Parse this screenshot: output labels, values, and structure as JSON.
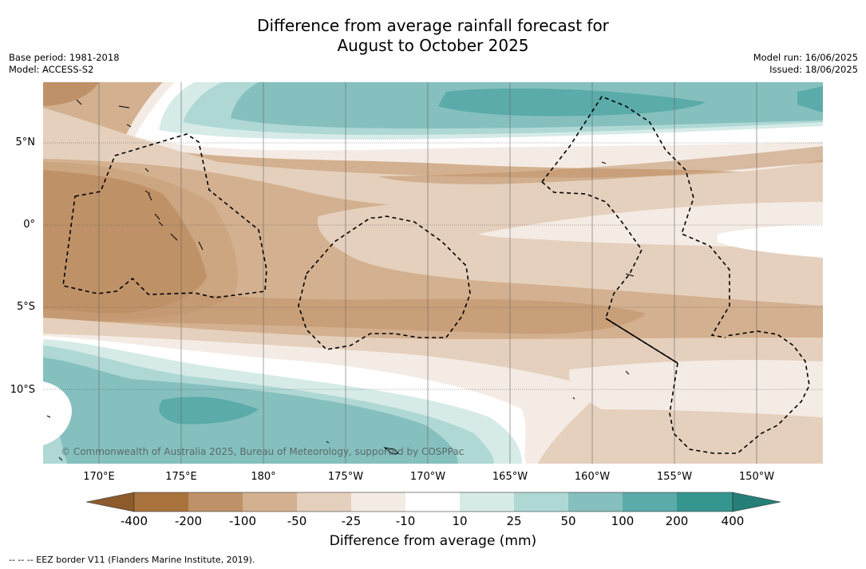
{
  "title_line1": "Difference from average rainfall forecast for",
  "title_line2": "August to October 2025",
  "base_period": "Base period: 1981-2018",
  "model": "Model: ACCESS-S2",
  "model_run": "Model run: 16/06/2025",
  "issued": "Issued: 18/06/2025",
  "copyright": "© Commonwealth of Australia 2025, Bureau of Meteorology, supported by COSPPac",
  "lat_labels": [
    "5°N",
    "0°",
    "5°S",
    "10°S"
  ],
  "lon_labels": [
    "170°E",
    "175°E",
    "180°",
    "175°W",
    "170°W",
    "165°W",
    "160°W",
    "155°W",
    "150°W"
  ],
  "colorbar": {
    "ticks": [
      "-400",
      "-200",
      "-100",
      "-50",
      "-25",
      "-10",
      "10",
      "25",
      "50",
      "100",
      "200",
      "400"
    ],
    "colors": [
      "#8c5a2b",
      "#a8733d",
      "#bf9168",
      "#d3b08f",
      "#e5d0bd",
      "#f4ebe4",
      "#ffffff",
      "#d6ebe8",
      "#afd8d5",
      "#85c0be",
      "#5aabaa",
      "#35968f",
      "#257f78"
    ],
    "title": "Difference from average (mm)"
  },
  "footnote": "-- -- -- EEZ border V11 (Flanders Marine Institute, 2019)."
}
